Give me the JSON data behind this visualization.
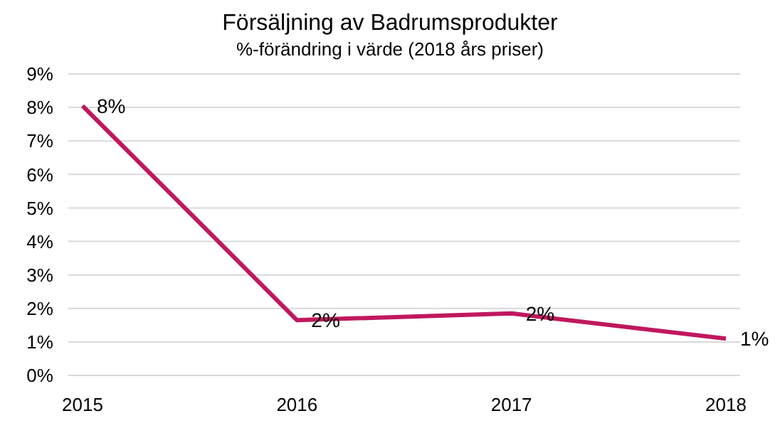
{
  "chart_data": {
    "type": "line",
    "title": "Försäljning av Badrumsprodukter",
    "subtitle": "%-förändring i värde (2018 års priser)",
    "categories": [
      "2015",
      "2016",
      "2017",
      "2018"
    ],
    "series": [
      {
        "color": "#c0185e",
        "values": [
          8.05,
          1.65,
          1.85,
          1.1
        ],
        "value_labels": [
          "8%",
          "2%",
          "2%",
          "1%"
        ]
      }
    ],
    "ylim": [
      0,
      9
    ],
    "yticks": [
      {
        "value": 0,
        "label": "0%"
      },
      {
        "value": 1,
        "label": "1%"
      },
      {
        "value": 2,
        "label": "2%"
      },
      {
        "value": 3,
        "label": "3%"
      },
      {
        "value": 4,
        "label": "4%"
      },
      {
        "value": 5,
        "label": "5%"
      },
      {
        "value": 6,
        "label": "6%"
      },
      {
        "value": 7,
        "label": "7%"
      },
      {
        "value": 8,
        "label": "8%"
      },
      {
        "value": 9,
        "label": "9%"
      }
    ],
    "grid": "y",
    "marker": "none",
    "line_style": "solid"
  }
}
